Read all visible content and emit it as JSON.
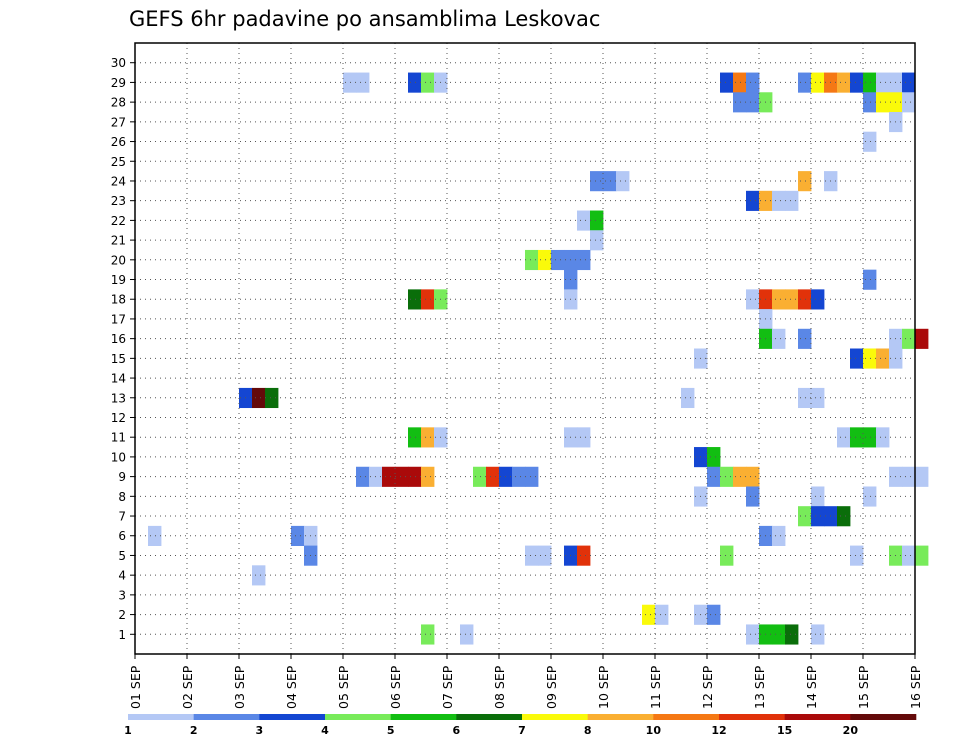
{
  "chart_data": {
    "type": "heatmap",
    "title": "GEFS 6hr padavine po ansamblima Leskovac",
    "y_ticks": [
      "1",
      "2",
      "3",
      "4",
      "5",
      "6",
      "7",
      "8",
      "9",
      "10",
      "11",
      "12",
      "13",
      "14",
      "15",
      "16",
      "17",
      "18",
      "19",
      "20",
      "21",
      "22",
      "23",
      "24",
      "25",
      "26",
      "27",
      "28",
      "29",
      "30"
    ],
    "x_ticks": [
      "01 SEP",
      "02 SEP",
      "03 SEP",
      "04 SEP",
      "05 SEP",
      "06 SEP",
      "07 SEP",
      "08 SEP",
      "09 SEP",
      "10 SEP",
      "11 SEP",
      "12 SEP",
      "13 SEP",
      "14 SEP",
      "15 SEP",
      "16 SEP"
    ],
    "x_unit": "6-hour steps from 01 SEP 00Z",
    "grid": true,
    "legend": {
      "placement": "bottom",
      "colors": [
        "#b4c8f5",
        "#5a87e6",
        "#1446d2",
        "#78eb5a",
        "#12be12",
        "#0a6e0a",
        "#fafa0a",
        "#faaf32",
        "#f57814",
        "#e1320a",
        "#aa0a0a",
        "#640a0a"
      ],
      "tick_labels": [
        "1",
        "2",
        "3",
        "4",
        "5",
        "6",
        "7",
        "8",
        "10",
        "12",
        "15",
        "20"
      ]
    },
    "cells": [
      [
        16,
        29,
        1
      ],
      [
        17,
        29,
        1
      ],
      [
        21,
        29,
        3
      ],
      [
        22,
        29,
        4
      ],
      [
        23,
        29,
        1
      ],
      [
        45,
        29,
        3
      ],
      [
        46,
        29,
        9
      ],
      [
        47,
        29,
        2
      ],
      [
        51,
        29,
        2
      ],
      [
        52,
        29,
        7
      ],
      [
        53,
        29,
        9
      ],
      [
        54,
        29,
        8
      ],
      [
        55,
        29,
        3
      ],
      [
        56,
        29,
        5
      ],
      [
        57,
        29,
        1
      ],
      [
        58,
        29,
        1
      ],
      [
        59,
        29,
        3
      ],
      [
        46,
        28,
        2
      ],
      [
        47,
        28,
        2
      ],
      [
        48,
        28,
        4
      ],
      [
        56,
        28,
        2
      ],
      [
        57,
        28,
        7
      ],
      [
        58,
        28,
        7
      ],
      [
        59,
        28,
        1
      ],
      [
        58,
        27,
        1
      ],
      [
        56,
        26,
        1
      ],
      [
        35,
        24,
        2
      ],
      [
        36,
        24,
        2
      ],
      [
        37,
        24,
        1
      ],
      [
        51,
        24,
        8
      ],
      [
        53,
        24,
        1
      ],
      [
        47,
        23,
        3
      ],
      [
        48,
        23,
        8
      ],
      [
        49,
        23,
        1
      ],
      [
        50,
        23,
        1
      ],
      [
        34,
        22,
        1
      ],
      [
        35,
        22,
        5
      ],
      [
        35,
        21,
        1
      ],
      [
        30,
        20,
        4
      ],
      [
        31,
        20,
        7
      ],
      [
        32,
        20,
        2
      ],
      [
        33,
        20,
        2
      ],
      [
        34,
        20,
        2
      ],
      [
        33,
        19,
        2
      ],
      [
        56,
        19,
        2
      ],
      [
        21,
        18,
        6
      ],
      [
        22,
        18,
        10
      ],
      [
        23,
        18,
        4
      ],
      [
        33,
        18,
        1
      ],
      [
        47,
        18,
        1
      ],
      [
        48,
        18,
        10
      ],
      [
        49,
        18,
        8
      ],
      [
        50,
        18,
        8
      ],
      [
        51,
        18,
        10
      ],
      [
        52,
        18,
        3
      ],
      [
        48,
        17,
        1
      ],
      [
        48,
        16,
        5
      ],
      [
        49,
        16,
        1
      ],
      [
        51,
        16,
        2
      ],
      [
        58,
        16,
        1
      ],
      [
        59,
        16,
        4
      ],
      [
        60,
        16,
        11
      ],
      [
        43,
        15,
        1
      ],
      [
        55,
        15,
        3
      ],
      [
        56,
        15,
        7
      ],
      [
        57,
        15,
        8
      ],
      [
        58,
        15,
        1
      ],
      [
        8,
        13,
        3
      ],
      [
        9,
        13,
        12
      ],
      [
        10,
        13,
        6
      ],
      [
        42,
        13,
        1
      ],
      [
        51,
        13,
        1
      ],
      [
        52,
        13,
        1
      ],
      [
        21,
        11,
        5
      ],
      [
        22,
        11,
        8
      ],
      [
        23,
        11,
        1
      ],
      [
        33,
        11,
        1
      ],
      [
        34,
        11,
        1
      ],
      [
        54,
        11,
        1
      ],
      [
        55,
        11,
        5
      ],
      [
        56,
        11,
        5
      ],
      [
        57,
        11,
        1
      ],
      [
        43,
        10,
        3
      ],
      [
        44,
        10,
        5
      ],
      [
        17,
        9,
        2
      ],
      [
        18,
        9,
        1
      ],
      [
        19,
        9,
        11
      ],
      [
        20,
        9,
        11
      ],
      [
        21,
        9,
        11
      ],
      [
        22,
        9,
        8
      ],
      [
        26,
        9,
        4
      ],
      [
        27,
        9,
        10
      ],
      [
        28,
        9,
        3
      ],
      [
        29,
        9,
        2
      ],
      [
        30,
        9,
        2
      ],
      [
        44,
        9,
        2
      ],
      [
        45,
        9,
        4
      ],
      [
        46,
        9,
        8
      ],
      [
        47,
        9,
        8
      ],
      [
        58,
        9,
        1
      ],
      [
        59,
        9,
        1
      ],
      [
        60,
        9,
        1
      ],
      [
        43,
        8,
        1
      ],
      [
        47,
        8,
        2
      ],
      [
        52,
        8,
        1
      ],
      [
        56,
        8,
        1
      ],
      [
        51,
        7,
        4
      ],
      [
        52,
        7,
        3
      ],
      [
        53,
        7,
        3
      ],
      [
        54,
        7,
        6
      ],
      [
        1,
        6,
        1
      ],
      [
        12,
        6,
        2
      ],
      [
        13,
        6,
        1
      ],
      [
        48,
        6,
        2
      ],
      [
        49,
        6,
        1
      ],
      [
        13,
        5,
        2
      ],
      [
        30,
        5,
        1
      ],
      [
        31,
        5,
        1
      ],
      [
        33,
        5,
        3
      ],
      [
        34,
        5,
        10
      ],
      [
        45,
        5,
        4
      ],
      [
        55,
        5,
        1
      ],
      [
        58,
        5,
        4
      ],
      [
        59,
        5,
        1
      ],
      [
        60,
        5,
        4
      ],
      [
        9,
        4,
        1
      ],
      [
        39,
        2,
        7
      ],
      [
        40,
        2,
        1
      ],
      [
        43,
        2,
        1
      ],
      [
        44,
        2,
        2
      ],
      [
        22,
        1,
        4
      ],
      [
        25,
        1,
        1
      ],
      [
        47,
        1,
        1
      ],
      [
        48,
        1,
        5
      ],
      [
        49,
        1,
        5
      ],
      [
        50,
        1,
        6
      ],
      [
        52,
        1,
        1
      ]
    ]
  }
}
